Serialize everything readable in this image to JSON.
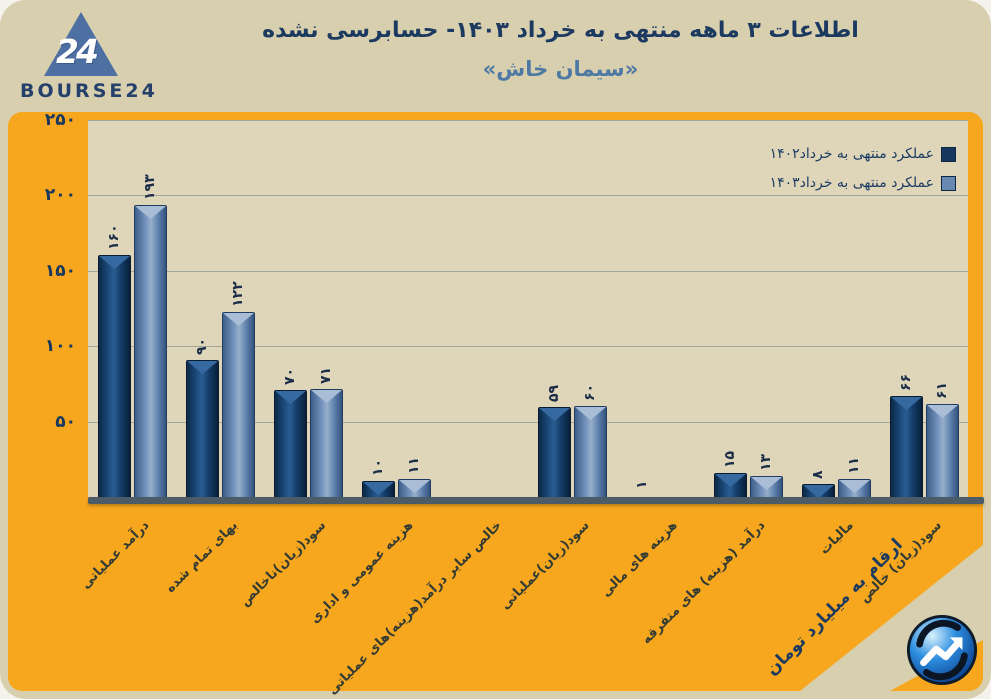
{
  "brand": {
    "logo_text": "BOURSE24",
    "logo_number": "24"
  },
  "header": {
    "title": "اطلاعات ۳ ماهه منتهی به خرداد ۱۴۰۳- حسابرسی نشده",
    "subtitle": "«سیمان خاش»"
  },
  "colors": {
    "panel_orange": "#f7a71e",
    "plot_beige": "#dfd6b9",
    "card_beige": "#d8cfaf",
    "series_1402": "#17375e",
    "series_1403": "#6988b2",
    "axis_gray": "#4b5c68",
    "title_navy": "#1c3a60",
    "subtitle_blue": "#4e79a4"
  },
  "chart_data": {
    "type": "bar",
    "title": "اطلاعات ۳ ماهه منتهی به خرداد ۱۴۰۳- حسابرسی نشده",
    "subtitle": "«سیمان خاش»",
    "unit_note": "ارقام به میلیارد تومان",
    "numerals": "persian",
    "categories": [
      "درآمد عملیاتی",
      "بهای تمام شده",
      "سود(زیان)ناخالص",
      "هزینه عمومی و اداری",
      "خالص سایر درآمد(هزینه)های عملیاتی",
      "سود(زیان)عملیاتی",
      "هزینه های مالی",
      "درآمد (هزینه) های متفرقه",
      "مالیات",
      "سود(زیان) خالص"
    ],
    "series": [
      {
        "name": "عملکرد منتهی به خرداد۱۴۰۲",
        "color": "#17375e",
        "values": [
          160,
          90,
          70,
          10,
          null,
          59,
          1,
          15,
          8,
          66
        ]
      },
      {
        "name": "عملکرد منتهی به خرداد۱۴۰۳",
        "color": "#6988b2",
        "values": [
          193,
          122,
          71,
          11,
          null,
          60,
          null,
          13,
          11,
          61
        ]
      }
    ],
    "ylim": [
      0,
      250
    ],
    "yticks": [
      50,
      100,
      150,
      200,
      250
    ],
    "grid": true,
    "legend_position": "top-right"
  }
}
